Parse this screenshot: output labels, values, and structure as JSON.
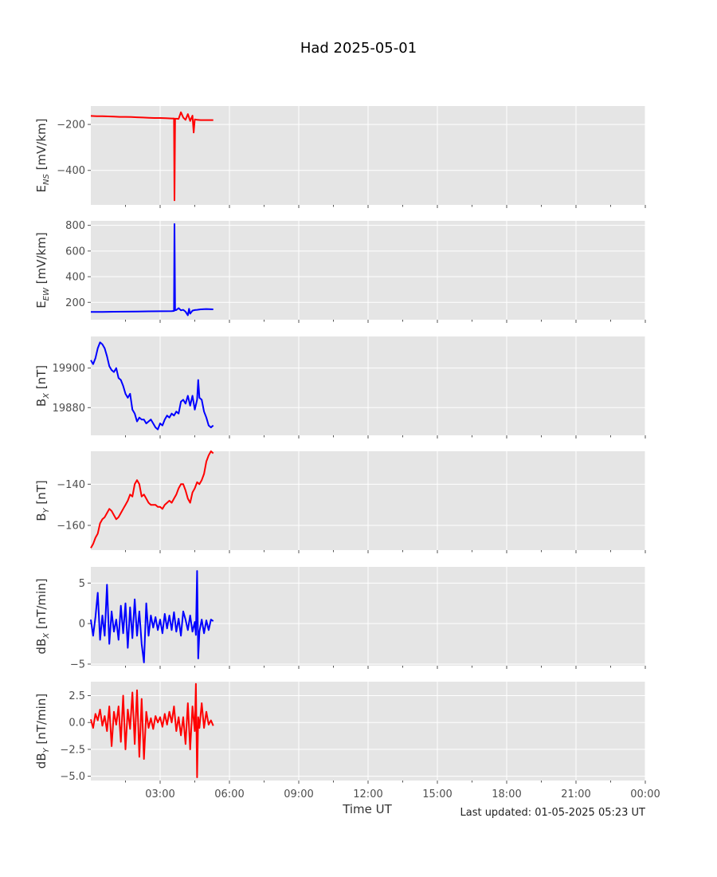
{
  "figure": {
    "title": "Had 2025-05-01",
    "xlabel": "Time UT",
    "last_updated": "Last updated: 01-05-2025 05:23 UT",
    "x_tick_labels": [
      "03:00",
      "06:00",
      "09:00",
      "12:00",
      "15:00",
      "18:00",
      "21:00",
      "00:00"
    ]
  },
  "colors": {
    "red": "#ff0000",
    "blue": "#0000ff",
    "panel_bg": "#e5e5e5",
    "grid": "#ffffff"
  },
  "chart_data": [
    {
      "type": "line",
      "name": "ens",
      "ylabel_main": "E",
      "ylabel_sub": "NS",
      "ylabel_unit": " [mV/km]",
      "color": "red",
      "xlim": [
        0,
        24
      ],
      "ylim": [
        -550,
        -120
      ],
      "yticks": [
        -200,
        -400
      ],
      "ytick_labels": [
        "−200",
        "−400"
      ],
      "x": [
        0.0,
        0.25,
        0.5,
        0.75,
        1.0,
        1.25,
        1.5,
        1.75,
        2.0,
        2.25,
        2.5,
        2.75,
        3.0,
        3.25,
        3.5,
        3.6,
        3.62,
        3.65,
        3.7,
        3.8,
        3.9,
        4.0,
        4.1,
        4.2,
        4.3,
        4.4,
        4.45,
        4.5,
        4.6,
        4.75,
        5.0,
        5.3
      ],
      "y": [
        -163,
        -164,
        -164,
        -165,
        -166,
        -167,
        -167,
        -168,
        -169,
        -170,
        -171,
        -172,
        -172,
        -173,
        -174,
        -174,
        -530,
        -175,
        -175,
        -176,
        -147,
        -170,
        -180,
        -155,
        -185,
        -162,
        -235,
        -178,
        -180,
        -181,
        -181,
        -181
      ]
    },
    {
      "type": "line",
      "name": "eew",
      "ylabel_main": "E",
      "ylabel_sub": "EW",
      "ylabel_unit": " [mV/km]",
      "color": "blue",
      "xlim": [
        0,
        24
      ],
      "ylim": [
        65,
        835
      ],
      "yticks": [
        200,
        400,
        600,
        800
      ],
      "ytick_labels": [
        "200",
        "400",
        "600",
        "800"
      ],
      "x": [
        0.0,
        0.5,
        1.0,
        1.5,
        2.0,
        2.5,
        3.0,
        3.5,
        3.6,
        3.62,
        3.65,
        3.7,
        3.8,
        3.9,
        4.0,
        4.1,
        4.2,
        4.25,
        4.3,
        4.4,
        4.5,
        4.6,
        4.75,
        5.0,
        5.3
      ],
      "y": [
        125,
        126,
        127,
        128,
        129,
        130,
        131,
        132,
        133,
        810,
        138,
        140,
        155,
        138,
        142,
        128,
        100,
        150,
        112,
        136,
        140,
        142,
        146,
        148,
        146
      ]
    },
    {
      "type": "line",
      "name": "bx",
      "ylabel_main": "B",
      "ylabel_sub": "X",
      "ylabel_unit": " [nT]",
      "color": "blue",
      "xlim": [
        0,
        24
      ],
      "ylim": [
        19866,
        19916
      ],
      "yticks": [
        19880,
        19900
      ],
      "ytick_labels": [
        "19880",
        "19900"
      ],
      "x": [
        0.0,
        0.1,
        0.2,
        0.3,
        0.4,
        0.5,
        0.6,
        0.7,
        0.8,
        0.9,
        1.0,
        1.1,
        1.2,
        1.3,
        1.4,
        1.5,
        1.6,
        1.7,
        1.8,
        1.9,
        2.0,
        2.1,
        2.2,
        2.3,
        2.4,
        2.5,
        2.6,
        2.7,
        2.8,
        2.9,
        3.0,
        3.1,
        3.2,
        3.3,
        3.4,
        3.5,
        3.6,
        3.7,
        3.8,
        3.9,
        4.0,
        4.1,
        4.2,
        4.3,
        4.4,
        4.5,
        4.6,
        4.65,
        4.7,
        4.8,
        4.9,
        5.0,
        5.1,
        5.2,
        5.3
      ],
      "y": [
        19904,
        19902,
        19905,
        19910,
        19913,
        19912,
        19910,
        19906,
        19901,
        19899,
        19898,
        19900,
        19895,
        19894,
        19891,
        19887,
        19885,
        19887,
        19879,
        19877,
        19873,
        19875,
        19874,
        19874,
        19872,
        19873,
        19874,
        19872,
        19870,
        19869,
        19872,
        19871,
        19874,
        19876,
        19875,
        19877,
        19876,
        19878,
        19877,
        19883,
        19884,
        19882,
        19886,
        19881,
        19886,
        19879,
        19884,
        19894,
        19885,
        19884,
        19878,
        19875,
        19871,
        19870,
        19871
      ]
    },
    {
      "type": "line",
      "name": "by",
      "ylabel_main": "B",
      "ylabel_sub": "Y",
      "ylabel_unit": " [nT]",
      "color": "red",
      "xlim": [
        0,
        24
      ],
      "ylim": [
        -172,
        -124
      ],
      "yticks": [
        -140,
        -160
      ],
      "ytick_labels": [
        "−140",
        "−160"
      ],
      "x": [
        0.0,
        0.1,
        0.2,
        0.3,
        0.4,
        0.5,
        0.6,
        0.7,
        0.8,
        0.9,
        1.0,
        1.1,
        1.2,
        1.3,
        1.4,
        1.5,
        1.6,
        1.7,
        1.8,
        1.9,
        2.0,
        2.1,
        2.2,
        2.3,
        2.4,
        2.5,
        2.6,
        2.7,
        2.8,
        2.9,
        3.0,
        3.1,
        3.2,
        3.3,
        3.4,
        3.5,
        3.6,
        3.7,
        3.8,
        3.9,
        4.0,
        4.1,
        4.2,
        4.3,
        4.4,
        4.5,
        4.6,
        4.7,
        4.8,
        4.9,
        5.0,
        5.1,
        5.2,
        5.3
      ],
      "y": [
        -171,
        -169,
        -166,
        -164,
        -159,
        -157,
        -156,
        -154,
        -152,
        -153,
        -155,
        -157,
        -156,
        -154,
        -152,
        -150,
        -148,
        -145,
        -146,
        -140,
        -138,
        -140,
        -146,
        -145,
        -147,
        -149,
        -150,
        -150,
        -150,
        -151,
        -151,
        -152,
        -150,
        -149,
        -148,
        -149,
        -147,
        -145,
        -142,
        -140,
        -140,
        -143,
        -147,
        -149,
        -144,
        -142,
        -139,
        -140,
        -138,
        -135,
        -129,
        -126,
        -124,
        -125
      ]
    },
    {
      "type": "line",
      "name": "dbx",
      "ylabel_main": "dB",
      "ylabel_sub": "X",
      "ylabel_unit": " [nT/min]",
      "color": "blue",
      "xlim": [
        0,
        24
      ],
      "ylim": [
        -5.2,
        7.0
      ],
      "yticks": [
        5,
        0,
        -5
      ],
      "ytick_labels": [
        "5",
        "0",
        "−5"
      ],
      "x": [
        0.0,
        0.1,
        0.2,
        0.3,
        0.4,
        0.5,
        0.6,
        0.7,
        0.8,
        0.9,
        1.0,
        1.1,
        1.2,
        1.3,
        1.4,
        1.5,
        1.6,
        1.7,
        1.8,
        1.9,
        2.0,
        2.1,
        2.2,
        2.3,
        2.4,
        2.5,
        2.6,
        2.7,
        2.8,
        2.9,
        3.0,
        3.1,
        3.2,
        3.3,
        3.4,
        3.5,
        3.6,
        3.7,
        3.8,
        3.9,
        4.0,
        4.1,
        4.2,
        4.3,
        4.4,
        4.5,
        4.55,
        4.6,
        4.65,
        4.7,
        4.8,
        4.9,
        5.0,
        5.1,
        5.2,
        5.3
      ],
      "y": [
        0.5,
        -1.5,
        0.8,
        3.8,
        -2.0,
        1.0,
        -1.5,
        4.8,
        -2.5,
        1.5,
        -1.0,
        0.5,
        -2.0,
        2.2,
        -1.2,
        2.5,
        -3.0,
        2.0,
        -1.8,
        3.0,
        -1.5,
        1.5,
        -2.5,
        -4.8,
        2.5,
        -1.5,
        1.0,
        -0.5,
        0.8,
        -0.8,
        0.5,
        -1.2,
        1.2,
        -0.6,
        1.0,
        -0.8,
        1.4,
        -1.0,
        0.6,
        -1.5,
        1.5,
        0.5,
        -0.8,
        1.0,
        -1.0,
        0.2,
        -1.4,
        6.5,
        -4.3,
        -1.0,
        0.5,
        -1.2,
        0.4,
        -0.8,
        0.5,
        0.3
      ]
    },
    {
      "type": "line",
      "name": "dby",
      "ylabel_main": "dB",
      "ylabel_sub": "Y",
      "ylabel_unit": " [nT/min]",
      "color": "red",
      "xlim": [
        0,
        24
      ],
      "ylim": [
        -5.4,
        3.8
      ],
      "yticks": [
        2.5,
        0.0,
        -2.5,
        -5.0
      ],
      "ytick_labels": [
        "2.5",
        "0.0",
        "−2.5",
        "−5.0"
      ],
      "x": [
        0.0,
        0.1,
        0.2,
        0.3,
        0.4,
        0.5,
        0.6,
        0.7,
        0.8,
        0.9,
        1.0,
        1.1,
        1.2,
        1.3,
        1.4,
        1.5,
        1.6,
        1.7,
        1.8,
        1.9,
        2.0,
        2.1,
        2.2,
        2.3,
        2.4,
        2.5,
        2.6,
        2.7,
        2.8,
        2.9,
        3.0,
        3.1,
        3.2,
        3.3,
        3.4,
        3.5,
        3.6,
        3.7,
        3.8,
        3.9,
        4.0,
        4.1,
        4.2,
        4.3,
        4.4,
        4.5,
        4.55,
        4.6,
        4.65,
        4.7,
        4.8,
        4.9,
        5.0,
        5.1,
        5.2,
        5.3
      ],
      "y": [
        0.3,
        -0.5,
        0.8,
        0.2,
        1.2,
        -0.3,
        0.6,
        -0.8,
        1.5,
        -2.2,
        1.0,
        -0.2,
        1.5,
        -1.8,
        2.5,
        -2.5,
        1.2,
        -0.6,
        2.8,
        -2.0,
        3.0,
        -3.2,
        2.2,
        -3.4,
        1.0,
        -0.5,
        0.4,
        -0.6,
        0.6,
        0.0,
        0.5,
        -0.4,
        0.8,
        -0.2,
        1.0,
        0.0,
        1.5,
        -0.8,
        0.5,
        -1.2,
        0.5,
        -2.0,
        1.8,
        -2.5,
        1.5,
        -0.8,
        3.6,
        -5.1,
        0.5,
        -0.5,
        1.8,
        -0.5,
        1.0,
        -0.2,
        0.2,
        -0.3
      ]
    }
  ]
}
